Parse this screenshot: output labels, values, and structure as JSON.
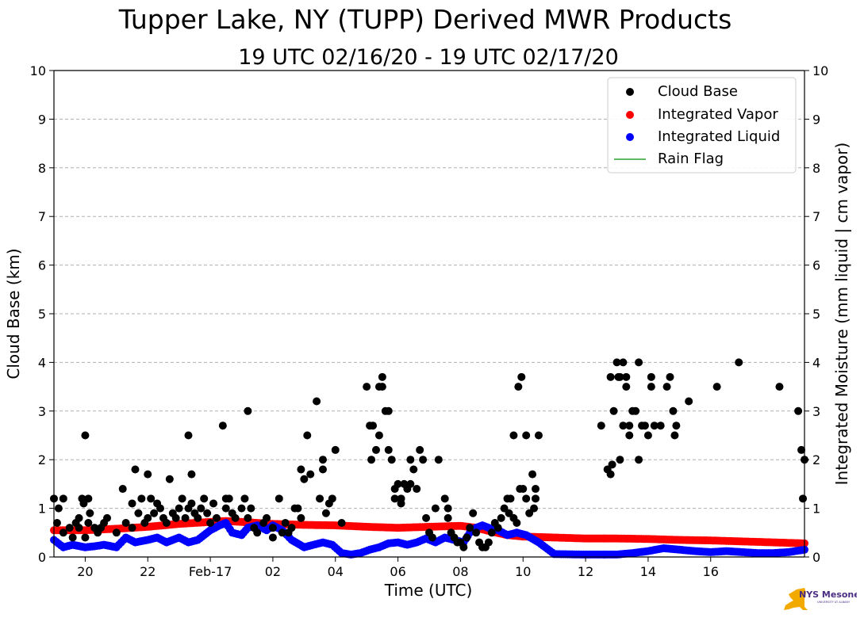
{
  "chart_data": {
    "type": "scatter",
    "title": "Tupper Lake, NY (TUPP) Derived MWR Products",
    "subtitle": "19 UTC 02/16/20 - 19 UTC 02/17/20",
    "xlabel": "Time (UTC)",
    "ylabel_left": "Cloud Base (km)",
    "ylabel_right": "Integrated Moisture (mm liquid | cm vapor)",
    "xlim": [
      0,
      24
    ],
    "ylim": [
      0,
      10
    ],
    "y_ticks": [
      "0",
      "1",
      "2",
      "3",
      "4",
      "5",
      "6",
      "7",
      "8",
      "9",
      "10"
    ],
    "x_ticks": [
      {
        "x": 1,
        "label": "20"
      },
      {
        "x": 3,
        "label": "22"
      },
      {
        "x": 5,
        "label": "Feb-17"
      },
      {
        "x": 7,
        "label": "02"
      },
      {
        "x": 9,
        "label": "04"
      },
      {
        "x": 11,
        "label": "06"
      },
      {
        "x": 13,
        "label": "08"
      },
      {
        "x": 15,
        "label": "10"
      },
      {
        "x": 17,
        "label": "12"
      },
      {
        "x": 19,
        "label": "14"
      },
      {
        "x": 21,
        "label": "16"
      }
    ],
    "grid": true,
    "legend": "top-right",
    "series": [
      {
        "name": "Cloud Base",
        "color": "#000000",
        "points": [
          [
            0.0,
            1.2
          ],
          [
            0.1,
            0.7
          ],
          [
            0.15,
            1.0
          ],
          [
            0.3,
            0.5
          ],
          [
            0.3,
            1.2
          ],
          [
            0.5,
            0.6
          ],
          [
            0.6,
            0.4
          ],
          [
            0.7,
            0.7
          ],
          [
            0.8,
            0.6
          ],
          [
            0.8,
            0.8
          ],
          [
            0.9,
            1.2
          ],
          [
            0.95,
            1.1
          ],
          [
            1.0,
            2.5
          ],
          [
            1.0,
            0.4
          ],
          [
            1.1,
            0.7
          ],
          [
            1.1,
            1.2
          ],
          [
            1.15,
            0.9
          ],
          [
            1.3,
            0.6
          ],
          [
            1.4,
            0.5
          ],
          [
            1.5,
            0.6
          ],
          [
            1.6,
            0.7
          ],
          [
            1.7,
            0.8
          ],
          [
            2.0,
            0.5
          ],
          [
            2.2,
            1.4
          ],
          [
            2.3,
            0.7
          ],
          [
            2.5,
            0.6
          ],
          [
            2.5,
            1.1
          ],
          [
            2.6,
            1.8
          ],
          [
            2.7,
            0.9
          ],
          [
            2.8,
            1.2
          ],
          [
            2.9,
            0.7
          ],
          [
            3.0,
            1.7
          ],
          [
            3.0,
            0.8
          ],
          [
            3.1,
            1.2
          ],
          [
            3.2,
            0.9
          ],
          [
            3.3,
            1.1
          ],
          [
            3.4,
            1.0
          ],
          [
            3.5,
            0.8
          ],
          [
            3.6,
            0.7
          ],
          [
            3.7,
            1.6
          ],
          [
            3.8,
            0.9
          ],
          [
            3.9,
            0.8
          ],
          [
            4.0,
            1.0
          ],
          [
            4.1,
            1.2
          ],
          [
            4.2,
            0.8
          ],
          [
            4.3,
            1.0
          ],
          [
            4.3,
            2.5
          ],
          [
            4.4,
            1.7
          ],
          [
            4.4,
            1.1
          ],
          [
            4.5,
            0.9
          ],
          [
            4.6,
            0.8
          ],
          [
            4.7,
            1.0
          ],
          [
            4.8,
            1.2
          ],
          [
            4.9,
            0.9
          ],
          [
            5.0,
            0.7
          ],
          [
            5.1,
            1.1
          ],
          [
            5.2,
            0.8
          ],
          [
            5.4,
            2.7
          ],
          [
            5.5,
            1.2
          ],
          [
            5.5,
            1.0
          ],
          [
            5.6,
            1.2
          ],
          [
            5.7,
            0.9
          ],
          [
            5.8,
            0.8
          ],
          [
            6.0,
            1.0
          ],
          [
            6.1,
            1.2
          ],
          [
            6.2,
            3.0
          ],
          [
            6.2,
            0.8
          ],
          [
            6.3,
            1.0
          ],
          [
            6.4,
            0.6
          ],
          [
            6.5,
            0.5
          ],
          [
            6.7,
            0.7
          ],
          [
            6.8,
            0.8
          ],
          [
            7.0,
            0.6
          ],
          [
            7.0,
            0.4
          ],
          [
            7.2,
            1.2
          ],
          [
            7.3,
            0.5
          ],
          [
            7.4,
            0.7
          ],
          [
            7.5,
            0.5
          ],
          [
            7.6,
            0.6
          ],
          [
            7.7,
            1.0
          ],
          [
            7.8,
            1.0
          ],
          [
            7.9,
            0.8
          ],
          [
            7.9,
            1.8
          ],
          [
            8.0,
            1.6
          ],
          [
            8.1,
            2.5
          ],
          [
            8.2,
            1.7
          ],
          [
            8.4,
            3.2
          ],
          [
            8.5,
            1.2
          ],
          [
            8.6,
            2.0
          ],
          [
            8.6,
            1.8
          ],
          [
            8.7,
            0.9
          ],
          [
            8.8,
            1.1
          ],
          [
            8.9,
            1.2
          ],
          [
            9.0,
            2.2
          ],
          [
            9.2,
            0.7
          ],
          [
            10.0,
            3.5
          ],
          [
            10.1,
            2.7
          ],
          [
            10.15,
            2.0
          ],
          [
            10.2,
            2.7
          ],
          [
            10.3,
            2.2
          ],
          [
            10.4,
            2.5
          ],
          [
            10.4,
            3.5
          ],
          [
            10.5,
            3.7
          ],
          [
            10.5,
            3.5
          ],
          [
            10.6,
            3.0
          ],
          [
            10.7,
            3.0
          ],
          [
            10.7,
            2.2
          ],
          [
            10.8,
            2.0
          ],
          [
            10.9,
            1.2
          ],
          [
            10.9,
            1.4
          ],
          [
            11.0,
            1.5
          ],
          [
            11.1,
            1.1
          ],
          [
            11.1,
            1.2
          ],
          [
            11.2,
            1.5
          ],
          [
            11.3,
            1.4
          ],
          [
            11.4,
            2.0
          ],
          [
            11.4,
            1.5
          ],
          [
            11.5,
            1.8
          ],
          [
            11.6,
            1.4
          ],
          [
            11.7,
            2.2
          ],
          [
            11.8,
            2.0
          ],
          [
            11.9,
            0.8
          ],
          [
            12.0,
            0.5
          ],
          [
            12.1,
            0.4
          ],
          [
            12.2,
            1.0
          ],
          [
            12.3,
            2.0
          ],
          [
            12.5,
            1.2
          ],
          [
            12.6,
            1.0
          ],
          [
            12.6,
            0.8
          ],
          [
            12.7,
            0.5
          ],
          [
            12.8,
            0.4
          ],
          [
            12.9,
            0.3
          ],
          [
            13.0,
            0.3
          ],
          [
            13.1,
            0.2
          ],
          [
            13.2,
            0.4
          ],
          [
            13.3,
            0.6
          ],
          [
            13.4,
            0.9
          ],
          [
            13.5,
            0.5
          ],
          [
            13.6,
            0.3
          ],
          [
            13.7,
            0.2
          ],
          [
            13.8,
            0.2
          ],
          [
            13.9,
            0.3
          ],
          [
            14.0,
            0.5
          ],
          [
            14.1,
            0.7
          ],
          [
            14.2,
            0.6
          ],
          [
            14.3,
            0.8
          ],
          [
            14.4,
            1.0
          ],
          [
            14.5,
            1.2
          ],
          [
            14.55,
            0.9
          ],
          [
            14.6,
            1.2
          ],
          [
            14.7,
            2.5
          ],
          [
            14.7,
            0.8
          ],
          [
            14.8,
            0.7
          ],
          [
            14.85,
            3.5
          ],
          [
            14.9,
            1.4
          ],
          [
            14.95,
            3.7
          ],
          [
            15.0,
            1.4
          ],
          [
            15.1,
            2.5
          ],
          [
            15.1,
            1.2
          ],
          [
            15.2,
            0.9
          ],
          [
            15.3,
            1.7
          ],
          [
            15.35,
            1.0
          ],
          [
            15.4,
            1.4
          ],
          [
            15.4,
            1.2
          ],
          [
            15.5,
            2.5
          ],
          [
            17.5,
            2.7
          ],
          [
            17.7,
            1.8
          ],
          [
            17.8,
            1.7
          ],
          [
            17.8,
            3.7
          ],
          [
            17.85,
            1.9
          ],
          [
            17.9,
            3.0
          ],
          [
            18.0,
            4.0
          ],
          [
            18.05,
            3.7
          ],
          [
            18.1,
            2.0
          ],
          [
            18.1,
            3.7
          ],
          [
            18.2,
            4.0
          ],
          [
            18.2,
            2.7
          ],
          [
            18.3,
            3.7
          ],
          [
            18.3,
            3.5
          ],
          [
            18.4,
            2.5
          ],
          [
            18.4,
            2.7
          ],
          [
            18.5,
            3.0
          ],
          [
            18.6,
            3.0
          ],
          [
            18.7,
            4.0
          ],
          [
            18.7,
            2.0
          ],
          [
            18.8,
            2.7
          ],
          [
            18.9,
            2.7
          ],
          [
            19.0,
            2.5
          ],
          [
            19.1,
            3.5
          ],
          [
            19.1,
            3.7
          ],
          [
            19.2,
            2.7
          ],
          [
            19.4,
            2.7
          ],
          [
            19.6,
            3.5
          ],
          [
            19.7,
            3.7
          ],
          [
            19.8,
            3.0
          ],
          [
            19.85,
            2.5
          ],
          [
            19.9,
            2.7
          ],
          [
            20.3,
            3.2
          ],
          [
            21.2,
            3.5
          ],
          [
            21.9,
            4.0
          ],
          [
            23.2,
            3.5
          ],
          [
            23.8,
            3.0
          ],
          [
            23.9,
            2.2
          ],
          [
            23.95,
            1.2
          ],
          [
            24.0,
            2.0
          ]
        ]
      },
      {
        "name": "Integrated Vapor",
        "color": "#ff0000",
        "points": [
          [
            0.0,
            0.55
          ],
          [
            1.0,
            0.55
          ],
          [
            2.0,
            0.58
          ],
          [
            3.0,
            0.62
          ],
          [
            4.0,
            0.68
          ],
          [
            5.0,
            0.72
          ],
          [
            5.5,
            0.74
          ],
          [
            6.0,
            0.72
          ],
          [
            7.0,
            0.68
          ],
          [
            8.0,
            0.66
          ],
          [
            9.0,
            0.65
          ],
          [
            10.0,
            0.62
          ],
          [
            11.0,
            0.6
          ],
          [
            12.0,
            0.62
          ],
          [
            13.0,
            0.64
          ],
          [
            13.5,
            0.6
          ],
          [
            14.0,
            0.52
          ],
          [
            14.5,
            0.45
          ],
          [
            15.0,
            0.42
          ],
          [
            16.0,
            0.4
          ],
          [
            17.0,
            0.38
          ],
          [
            18.0,
            0.38
          ],
          [
            19.0,
            0.37
          ],
          [
            20.0,
            0.35
          ],
          [
            21.0,
            0.34
          ],
          [
            22.0,
            0.32
          ],
          [
            23.0,
            0.3
          ],
          [
            24.0,
            0.28
          ]
        ]
      },
      {
        "name": "Integrated Liquid",
        "color": "#0000ff",
        "points": [
          [
            0.0,
            0.35
          ],
          [
            0.3,
            0.2
          ],
          [
            0.6,
            0.25
          ],
          [
            1.0,
            0.2
          ],
          [
            1.3,
            0.22
          ],
          [
            1.6,
            0.25
          ],
          [
            2.0,
            0.2
          ],
          [
            2.3,
            0.4
          ],
          [
            2.6,
            0.3
          ],
          [
            3.0,
            0.35
          ],
          [
            3.3,
            0.4
          ],
          [
            3.6,
            0.3
          ],
          [
            4.0,
            0.4
          ],
          [
            4.3,
            0.3
          ],
          [
            4.6,
            0.35
          ],
          [
            5.0,
            0.55
          ],
          [
            5.3,
            0.65
          ],
          [
            5.5,
            0.7
          ],
          [
            5.7,
            0.5
          ],
          [
            6.0,
            0.45
          ],
          [
            6.2,
            0.6
          ],
          [
            6.5,
            0.65
          ],
          [
            6.8,
            0.55
          ],
          [
            7.0,
            0.65
          ],
          [
            7.3,
            0.55
          ],
          [
            7.6,
            0.35
          ],
          [
            8.0,
            0.2
          ],
          [
            8.3,
            0.25
          ],
          [
            8.6,
            0.3
          ],
          [
            8.9,
            0.25
          ],
          [
            9.2,
            0.08
          ],
          [
            9.5,
            0.05
          ],
          [
            9.8,
            0.08
          ],
          [
            10.1,
            0.15
          ],
          [
            10.4,
            0.2
          ],
          [
            10.7,
            0.28
          ],
          [
            11.0,
            0.3
          ],
          [
            11.3,
            0.25
          ],
          [
            11.6,
            0.3
          ],
          [
            11.9,
            0.38
          ],
          [
            12.2,
            0.3
          ],
          [
            12.5,
            0.4
          ],
          [
            12.8,
            0.35
          ],
          [
            13.1,
            0.3
          ],
          [
            13.3,
            0.5
          ],
          [
            13.5,
            0.6
          ],
          [
            13.7,
            0.65
          ],
          [
            13.9,
            0.6
          ],
          [
            14.2,
            0.55
          ],
          [
            14.5,
            0.45
          ],
          [
            14.8,
            0.5
          ],
          [
            15.1,
            0.45
          ],
          [
            15.5,
            0.3
          ],
          [
            16.0,
            0.06
          ],
          [
            17.0,
            0.05
          ],
          [
            18.0,
            0.05
          ],
          [
            18.5,
            0.08
          ],
          [
            19.0,
            0.12
          ],
          [
            19.5,
            0.18
          ],
          [
            20.0,
            0.15
          ],
          [
            20.5,
            0.12
          ],
          [
            21.0,
            0.1
          ],
          [
            21.5,
            0.12
          ],
          [
            22.0,
            0.1
          ],
          [
            22.5,
            0.08
          ],
          [
            23.0,
            0.08
          ],
          [
            23.5,
            0.1
          ],
          [
            24.0,
            0.15
          ]
        ]
      },
      {
        "name": "Rain Flag",
        "color": "#2ca02c",
        "points": []
      }
    ]
  },
  "logo": {
    "name": "NYS Mesonet",
    "sub": "UNIVERSITY AT ALBANY",
    "state_color": "#f2a900",
    "text_color": "#4b2e83"
  }
}
